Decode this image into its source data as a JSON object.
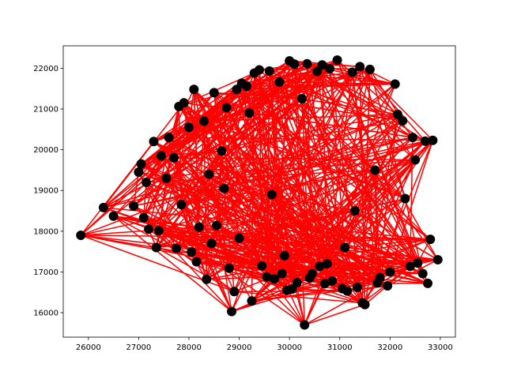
{
  "chart_data": {
    "type": "scatter",
    "marker": "o",
    "line_style": "solid",
    "colors": {
      "points": "#000000",
      "line": "#ff0000",
      "axes": "#000000",
      "background": "#ffffff"
    },
    "title": "",
    "xlabel": "",
    "ylabel": "",
    "xlim": [
      25500,
      33300
    ],
    "ylim": [
      15400,
      22550
    ],
    "grid": false,
    "legend": "none",
    "xticks": [
      26000,
      27000,
      28000,
      29000,
      30000,
      31000,
      32000,
      33000
    ],
    "yticks": [
      16000,
      17000,
      18000,
      19000,
      20000,
      21000,
      22000
    ],
    "xtick_labels": [
      "26000",
      "27000",
      "28000",
      "29000",
      "30000",
      "31000",
      "32000",
      "33000"
    ],
    "ytick_labels": [
      "16000",
      "17000",
      "18000",
      "19000",
      "20000",
      "21000",
      "22000"
    ],
    "series": [
      {
        "x": [
          25850,
          26300,
          26500,
          26900,
          27000,
          27050,
          27100,
          27200,
          27300,
          27350,
          27400,
          27550,
          27700,
          27750,
          27800,
          27850,
          27900,
          28000,
          28050,
          28100,
          28150,
          28300,
          28350,
          28450,
          28500,
          28550,
          28650,
          28750,
          28800,
          28850,
          28900,
          28950,
          29000,
          29050,
          29150,
          29250,
          29300,
          29400,
          29450,
          29550,
          29600,
          29700,
          29800,
          29850,
          29950,
          30000,
          30050,
          30100,
          30150,
          30300,
          30350,
          30400,
          30450,
          30550,
          30600,
          30650,
          30700,
          30800,
          30850,
          30950,
          31050,
          31150,
          31250,
          31350,
          31400,
          31450,
          31500,
          31600,
          31750,
          31800,
          31950,
          32000,
          32100,
          32150,
          32250,
          32400,
          32450,
          32550,
          32650,
          32700,
          32750,
          32800,
          32850,
          32950,
          27150,
          27450,
          28200,
          28700,
          29200,
          29900,
          30250,
          30750,
          31300,
          31700,
          32300,
          27600,
          28400,
          29650,
          31100,
          32500
        ],
        "y": [
          17900,
          18580,
          18370,
          18620,
          19450,
          19650,
          18330,
          18050,
          20200,
          17600,
          18010,
          19300,
          19800,
          17580,
          21060,
          18650,
          21150,
          20550,
          17490,
          21480,
          17250,
          20700,
          16820,
          17700,
          21400,
          18140,
          19970,
          21030,
          17090,
          16030,
          16520,
          21480,
          17830,
          21630,
          21560,
          16290,
          21880,
          21960,
          17150,
          16880,
          21930,
          16830,
          21660,
          16960,
          16550,
          22180,
          16580,
          22100,
          16740,
          15700,
          22110,
          16850,
          16960,
          21920,
          17140,
          22080,
          16710,
          21990,
          16780,
          22200,
          16590,
          16530,
          21900,
          16620,
          22040,
          16240,
          16200,
          21970,
          16730,
          16860,
          16660,
          17000,
          21610,
          20870,
          20710,
          17140,
          20300,
          17220,
          16960,
          20210,
          16720,
          17800,
          20230,
          17300,
          19200,
          19850,
          18100,
          19050,
          20900,
          17400,
          21250,
          17200,
          18500,
          19500,
          18800,
          20300,
          19400,
          18900,
          17600,
          19750
        ]
      }
    ]
  }
}
